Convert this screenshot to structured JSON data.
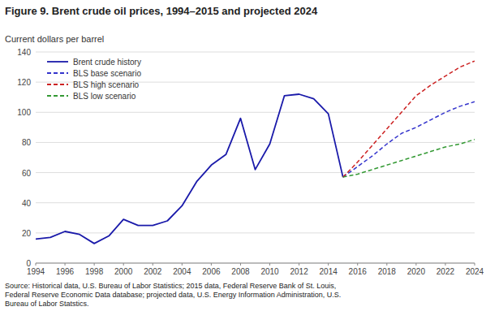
{
  "chart_data": {
    "type": "line",
    "title": "Figure 9. Brent crude oil prices, 1994–2015 and projected 2024",
    "y_label": "Current dollars per barrel",
    "source": "Source: Historical  data, U.S. Bureau of Labor Statistics; 2015 data, Federal Reserve Bank of St. Louis,\nFederal Reserve Economic Data database; projected data, U.S. Energy Information Administration,  U.S.\nBureau of Labor Statstics.",
    "series": [
      {
        "name": "Brent crude history",
        "color": "#1a1aaa",
        "line_style": "solid",
        "x": [
          1994,
          1995,
          1996,
          1997,
          1998,
          1999,
          2000,
          2001,
          2002,
          2003,
          2004,
          2005,
          2006,
          2007,
          2008,
          2009,
          2010,
          2011,
          2012,
          2013,
          2014,
          2015
        ],
        "values": [
          16,
          17,
          21,
          19,
          13,
          18,
          29,
          25,
          25,
          28,
          38,
          54,
          65,
          72,
          96,
          62,
          79,
          111,
          112,
          109,
          99,
          57
        ]
      },
      {
        "name": "BLS base scenario",
        "color": "#3333cc",
        "line_style": "dashed",
        "x": [
          2015,
          2016,
          2017,
          2018,
          2019,
          2020,
          2021,
          2022,
          2023,
          2024
        ],
        "values": [
          57,
          64,
          71,
          79,
          86,
          90,
          95,
          100,
          104,
          107
        ]
      },
      {
        "name": "BLS high scenario",
        "color": "#cc2222",
        "line_style": "dashed",
        "x": [
          2015,
          2016,
          2017,
          2018,
          2019,
          2020,
          2021,
          2022,
          2023,
          2024
        ],
        "values": [
          57,
          67,
          78,
          89,
          100,
          111,
          118,
          124,
          130,
          134
        ]
      },
      {
        "name": "BLS low scenario",
        "color": "#339933",
        "line_style": "dashed",
        "x": [
          2015,
          2016,
          2017,
          2018,
          2019,
          2020,
          2021,
          2022,
          2023,
          2024
        ],
        "values": [
          57,
          59,
          62,
          65,
          68,
          71,
          74,
          77,
          79,
          82
        ]
      }
    ],
    "xlim": [
      1994,
      2024
    ],
    "ylim": [
      0,
      140
    ],
    "xticks": [
      1994,
      1996,
      1998,
      2000,
      2002,
      2004,
      2006,
      2008,
      2010,
      2012,
      2014,
      2016,
      2018,
      2020,
      2022,
      2024
    ],
    "yticks": [
      0,
      20,
      40,
      60,
      80,
      100,
      120,
      140
    ],
    "grid": "y",
    "legend": "upper left"
  }
}
